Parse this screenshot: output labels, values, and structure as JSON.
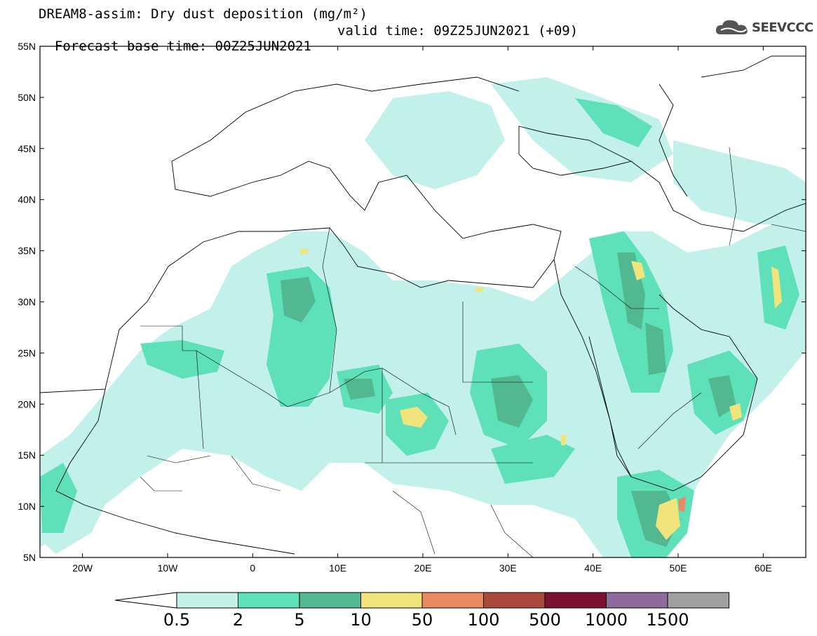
{
  "header": {
    "title_line1": "DREAM8-assim: Dry dust deposition (mg/m²)",
    "base_time": "Forecast base time: 00Z25JUN2021",
    "valid_time": "valid time: 09Z25JUN2021 (+09)"
  },
  "logo": {
    "text": "SEEVCCC",
    "icon": "cloud-logo-icon"
  },
  "map": {
    "extent": {
      "lon": [
        -25,
        65
      ],
      "lat": [
        5,
        55
      ]
    },
    "lat_ticks": [
      "5N",
      "10N",
      "15N",
      "20N",
      "25N",
      "30N",
      "35N",
      "40N",
      "45N",
      "50N",
      "55N"
    ],
    "lon_ticks": [
      "20W",
      "10W",
      "0",
      "10E",
      "20E",
      "30E",
      "40E",
      "50E",
      "60E"
    ],
    "field_units": "mg/m²"
  },
  "colorbar": {
    "labels": [
      "0.5",
      "2",
      "5",
      "10",
      "50",
      "100",
      "500",
      "1000",
      "1500"
    ],
    "colors": [
      "#c2f0ea",
      "#5ee0b8",
      "#52b892",
      "#f0e47a",
      "#ea8a62",
      "#ab4a3c",
      "#7a1230",
      "#8e6a9e",
      "#a0a0a0"
    ]
  }
}
